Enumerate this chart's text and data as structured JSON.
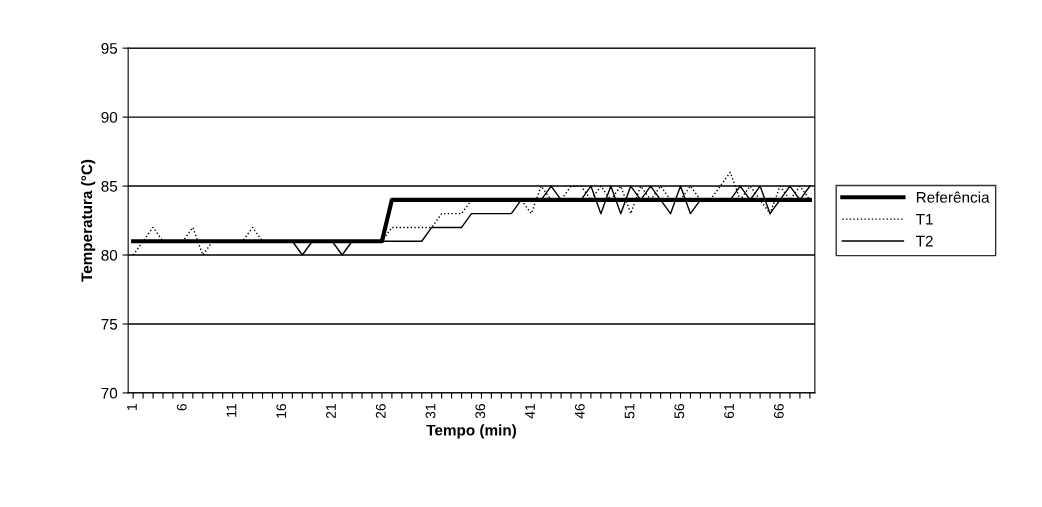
{
  "chart_data": {
    "type": "line",
    "xlabel": "Tempo (min)",
    "ylabel": "Temperatura (°C)",
    "categories": [
      "1",
      null,
      null,
      null,
      null,
      "6",
      null,
      null,
      null,
      null,
      "11",
      null,
      null,
      null,
      null,
      "16",
      null,
      null,
      null,
      null,
      "21",
      null,
      null,
      null,
      null,
      "26",
      null,
      null,
      null,
      null,
      "31",
      null,
      null,
      null,
      null,
      "36",
      null,
      null,
      null,
      null,
      "41",
      null,
      null,
      null,
      null,
      "46",
      null,
      null,
      null,
      null,
      "51",
      null,
      null,
      null,
      null,
      "56",
      null,
      null,
      null,
      null,
      "61",
      null,
      null,
      null,
      null,
      "66",
      null,
      null,
      null
    ],
    "series": [
      {
        "name": "Referência",
        "color": "#000000",
        "line_style": "solid",
        "values": [
          81,
          81,
          81,
          81,
          81,
          81,
          81,
          81,
          81,
          81,
          81,
          81,
          81,
          81,
          81,
          81,
          81,
          81,
          81,
          81,
          81,
          81,
          81,
          81,
          81,
          81,
          84,
          84,
          84,
          84,
          84,
          84,
          84,
          84,
          84,
          84,
          84,
          84,
          84,
          84,
          84,
          84,
          84,
          84,
          84,
          84,
          84,
          84,
          84,
          84,
          84,
          84,
          84,
          84,
          84,
          84,
          84,
          84,
          84,
          84,
          84,
          84,
          84,
          84,
          84,
          84,
          84,
          84,
          84
        ]
      },
      {
        "name": "T1",
        "color": "#000000",
        "line_style": "dotted",
        "values": [
          80,
          81,
          82,
          81,
          81,
          81,
          82,
          80,
          81,
          81,
          81,
          81,
          82,
          81,
          81,
          81,
          81,
          81,
          81,
          81,
          81,
          81,
          81,
          81,
          81,
          81,
          82,
          82,
          82,
          82,
          82,
          83,
          83,
          83,
          84,
          84,
          84,
          84,
          84,
          84,
          83,
          85,
          84,
          84,
          85,
          85,
          84,
          85,
          84,
          85,
          83,
          85,
          84,
          85,
          84,
          84,
          85,
          84,
          84,
          85,
          86,
          84,
          85,
          84,
          83,
          85,
          84,
          85,
          84
        ]
      },
      {
        "name": "T2",
        "color": "#000000",
        "line_style": "solid",
        "values": [
          81,
          81,
          81,
          81,
          81,
          81,
          81,
          81,
          81,
          81,
          81,
          81,
          81,
          81,
          81,
          81,
          81,
          80,
          81,
          81,
          81,
          80,
          81,
          81,
          81,
          81,
          81,
          81,
          81,
          81,
          82,
          82,
          82,
          82,
          83,
          83,
          83,
          83,
          83,
          84,
          84,
          84,
          85,
          84,
          84,
          84,
          85,
          83,
          85,
          83,
          85,
          84,
          85,
          84,
          83,
          85,
          83,
          84,
          84,
          84,
          84,
          85,
          84,
          85,
          83,
          84,
          85,
          84,
          85
        ]
      }
    ],
    "ylim": [
      70,
      95
    ],
    "yticks": [
      70,
      75,
      80,
      85,
      90,
      95
    ],
    "grid": "y",
    "legend": "right",
    "marker": "none"
  }
}
